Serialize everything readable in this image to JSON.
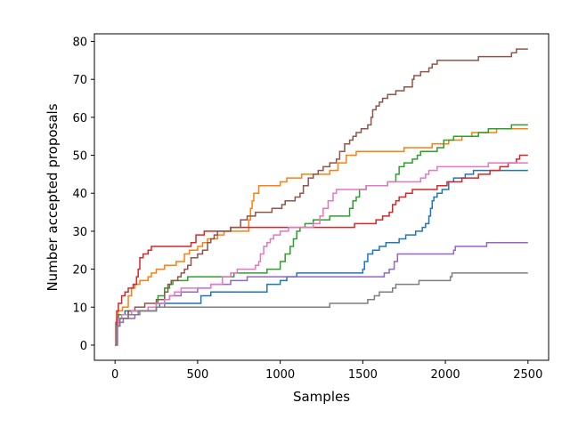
{
  "chart_data": {
    "type": "line",
    "title": "",
    "xlabel": "Samples",
    "ylabel": "Number accepted proposals",
    "xlim": [
      -125,
      2625
    ],
    "ylim": [
      -4,
      82
    ],
    "xticks": [
      0,
      500,
      1000,
      1500,
      2000,
      2500
    ],
    "yticks": [
      0,
      10,
      20,
      30,
      40,
      50,
      60,
      70,
      80
    ],
    "grid": false,
    "legend": "none",
    "series": [
      {
        "color": "#1f77b4",
        "points": [
          [
            0,
            0
          ],
          [
            8,
            6
          ],
          [
            20,
            8
          ],
          [
            60,
            9
          ],
          [
            250,
            10
          ],
          [
            270,
            11
          ],
          [
            500,
            11
          ],
          [
            520,
            13
          ],
          [
            580,
            14
          ],
          [
            900,
            14
          ],
          [
            920,
            16
          ],
          [
            1000,
            17
          ],
          [
            1040,
            18
          ],
          [
            1100,
            19
          ],
          [
            1400,
            19
          ],
          [
            1500,
            20
          ],
          [
            1510,
            22
          ],
          [
            1530,
            24
          ],
          [
            1560,
            25
          ],
          [
            1600,
            26
          ],
          [
            1640,
            27
          ],
          [
            1700,
            27
          ],
          [
            1720,
            28
          ],
          [
            1760,
            29
          ],
          [
            1800,
            29
          ],
          [
            1820,
            30
          ],
          [
            1860,
            31
          ],
          [
            1880,
            32
          ],
          [
            1900,
            34
          ],
          [
            1910,
            36
          ],
          [
            1920,
            38
          ],
          [
            1930,
            39
          ],
          [
            1950,
            40
          ],
          [
            1980,
            41
          ],
          [
            2020,
            43
          ],
          [
            2050,
            44
          ],
          [
            2100,
            44
          ],
          [
            2120,
            45
          ],
          [
            2170,
            46
          ],
          [
            2500,
            46
          ]
        ]
      },
      {
        "color": "#ff7f0e",
        "points": [
          [
            0,
            0
          ],
          [
            10,
            7
          ],
          [
            20,
            9
          ],
          [
            45,
            10
          ],
          [
            80,
            13
          ],
          [
            100,
            15
          ],
          [
            120,
            16
          ],
          [
            150,
            17
          ],
          [
            200,
            18
          ],
          [
            220,
            19
          ],
          [
            250,
            20
          ],
          [
            300,
            21
          ],
          [
            350,
            21
          ],
          [
            370,
            22
          ],
          [
            420,
            24
          ],
          [
            450,
            25
          ],
          [
            500,
            26
          ],
          [
            530,
            27
          ],
          [
            560,
            28
          ],
          [
            600,
            28
          ],
          [
            620,
            29
          ],
          [
            660,
            30
          ],
          [
            800,
            30
          ],
          [
            810,
            33
          ],
          [
            820,
            36
          ],
          [
            830,
            38
          ],
          [
            840,
            40
          ],
          [
            870,
            42
          ],
          [
            960,
            42
          ],
          [
            1000,
            43
          ],
          [
            1040,
            44
          ],
          [
            1100,
            44
          ],
          [
            1130,
            45
          ],
          [
            1250,
            45
          ],
          [
            1300,
            46
          ],
          [
            1350,
            48
          ],
          [
            1400,
            50
          ],
          [
            1460,
            51
          ],
          [
            1700,
            51
          ],
          [
            1750,
            52
          ],
          [
            1900,
            52
          ],
          [
            1920,
            53
          ],
          [
            2020,
            54
          ],
          [
            2100,
            55
          ],
          [
            2160,
            56
          ],
          [
            2310,
            57
          ],
          [
            2500,
            57
          ]
        ]
      },
      {
        "color": "#2ca02c",
        "points": [
          [
            0,
            0
          ],
          [
            10,
            6
          ],
          [
            20,
            8
          ],
          [
            80,
            9
          ],
          [
            200,
            10
          ],
          [
            250,
            11
          ],
          [
            260,
            13
          ],
          [
            300,
            15
          ],
          [
            330,
            16
          ],
          [
            350,
            17
          ],
          [
            420,
            17
          ],
          [
            440,
            18
          ],
          [
            700,
            18
          ],
          [
            720,
            19
          ],
          [
            900,
            19
          ],
          [
            920,
            20
          ],
          [
            1000,
            22
          ],
          [
            1030,
            24
          ],
          [
            1060,
            26
          ],
          [
            1080,
            28
          ],
          [
            1100,
            30
          ],
          [
            1120,
            31
          ],
          [
            1150,
            32
          ],
          [
            1200,
            33
          ],
          [
            1300,
            34
          ],
          [
            1400,
            34
          ],
          [
            1420,
            36
          ],
          [
            1440,
            38
          ],
          [
            1460,
            39
          ],
          [
            1480,
            41
          ],
          [
            1520,
            42
          ],
          [
            1600,
            42
          ],
          [
            1650,
            43
          ],
          [
            1700,
            45
          ],
          [
            1720,
            47
          ],
          [
            1750,
            48
          ],
          [
            1800,
            49
          ],
          [
            1830,
            50
          ],
          [
            1850,
            51
          ],
          [
            1950,
            52
          ],
          [
            1990,
            54
          ],
          [
            2050,
            55
          ],
          [
            2200,
            56
          ],
          [
            2260,
            57
          ],
          [
            2400,
            58
          ],
          [
            2500,
            58
          ]
        ]
      },
      {
        "color": "#d62728",
        "points": [
          [
            0,
            0
          ],
          [
            5,
            6
          ],
          [
            10,
            9
          ],
          [
            20,
            11
          ],
          [
            40,
            13
          ],
          [
            60,
            14
          ],
          [
            80,
            15
          ],
          [
            110,
            16
          ],
          [
            130,
            18
          ],
          [
            140,
            20
          ],
          [
            150,
            23
          ],
          [
            170,
            24
          ],
          [
            200,
            25
          ],
          [
            220,
            26
          ],
          [
            430,
            26
          ],
          [
            460,
            27
          ],
          [
            490,
            29
          ],
          [
            510,
            29
          ],
          [
            540,
            30
          ],
          [
            650,
            30
          ],
          [
            700,
            31
          ],
          [
            1400,
            31
          ],
          [
            1450,
            32
          ],
          [
            1580,
            33
          ],
          [
            1620,
            34
          ],
          [
            1660,
            35
          ],
          [
            1680,
            37
          ],
          [
            1700,
            38
          ],
          [
            1720,
            39
          ],
          [
            1760,
            40
          ],
          [
            1800,
            41
          ],
          [
            1900,
            41
          ],
          [
            1950,
            42
          ],
          [
            2010,
            43
          ],
          [
            2100,
            44
          ],
          [
            2200,
            45
          ],
          [
            2270,
            46
          ],
          [
            2330,
            47
          ],
          [
            2380,
            48
          ],
          [
            2430,
            49
          ],
          [
            2450,
            50
          ],
          [
            2500,
            50
          ]
        ]
      },
      {
        "color": "#9467bd",
        "points": [
          [
            0,
            0
          ],
          [
            15,
            6
          ],
          [
            50,
            7
          ],
          [
            120,
            8
          ],
          [
            150,
            9
          ],
          [
            250,
            10
          ],
          [
            300,
            12
          ],
          [
            330,
            13
          ],
          [
            400,
            14
          ],
          [
            500,
            15
          ],
          [
            580,
            16
          ],
          [
            700,
            17
          ],
          [
            800,
            18
          ],
          [
            1600,
            18
          ],
          [
            1630,
            19
          ],
          [
            1660,
            20
          ],
          [
            1690,
            22
          ],
          [
            1710,
            24
          ],
          [
            2000,
            24
          ],
          [
            2050,
            25
          ],
          [
            2060,
            26
          ],
          [
            2200,
            26
          ],
          [
            2250,
            27
          ],
          [
            2500,
            27
          ]
        ]
      },
      {
        "color": "#8c564b",
        "points": [
          [
            0,
            0
          ],
          [
            10,
            5
          ],
          [
            20,
            7
          ],
          [
            80,
            9
          ],
          [
            120,
            10
          ],
          [
            180,
            11
          ],
          [
            250,
            12
          ],
          [
            300,
            14
          ],
          [
            320,
            16
          ],
          [
            340,
            17
          ],
          [
            380,
            18
          ],
          [
            400,
            19
          ],
          [
            420,
            20
          ],
          [
            440,
            21
          ],
          [
            460,
            23
          ],
          [
            500,
            24
          ],
          [
            530,
            25
          ],
          [
            560,
            27
          ],
          [
            580,
            28
          ],
          [
            600,
            29
          ],
          [
            620,
            30
          ],
          [
            700,
            31
          ],
          [
            760,
            33
          ],
          [
            800,
            34
          ],
          [
            850,
            35
          ],
          [
            950,
            36
          ],
          [
            1010,
            37
          ],
          [
            1030,
            38
          ],
          [
            1090,
            39
          ],
          [
            1120,
            40
          ],
          [
            1140,
            42
          ],
          [
            1170,
            44
          ],
          [
            1200,
            45
          ],
          [
            1230,
            46
          ],
          [
            1260,
            47
          ],
          [
            1300,
            48
          ],
          [
            1340,
            49
          ],
          [
            1360,
            51
          ],
          [
            1390,
            53
          ],
          [
            1420,
            54
          ],
          [
            1440,
            55
          ],
          [
            1460,
            56
          ],
          [
            1490,
            57
          ],
          [
            1530,
            58
          ],
          [
            1550,
            60
          ],
          [
            1560,
            62
          ],
          [
            1580,
            63
          ],
          [
            1600,
            64
          ],
          [
            1620,
            65
          ],
          [
            1650,
            66
          ],
          [
            1700,
            67
          ],
          [
            1750,
            68
          ],
          [
            1800,
            70
          ],
          [
            1810,
            71
          ],
          [
            1850,
            72
          ],
          [
            1900,
            73
          ],
          [
            1920,
            74
          ],
          [
            1950,
            75
          ],
          [
            2200,
            76
          ],
          [
            2400,
            77
          ],
          [
            2430,
            78
          ],
          [
            2500,
            78
          ]
        ]
      },
      {
        "color": "#e377c2",
        "points": [
          [
            0,
            0
          ],
          [
            10,
            5
          ],
          [
            20,
            7
          ],
          [
            40,
            8
          ],
          [
            100,
            9
          ],
          [
            200,
            10
          ],
          [
            250,
            11
          ],
          [
            300,
            12
          ],
          [
            330,
            13
          ],
          [
            360,
            14
          ],
          [
            400,
            15
          ],
          [
            580,
            16
          ],
          [
            650,
            18
          ],
          [
            700,
            19
          ],
          [
            740,
            20
          ],
          [
            850,
            21
          ],
          [
            870,
            22
          ],
          [
            880,
            24
          ],
          [
            900,
            26
          ],
          [
            920,
            27
          ],
          [
            940,
            28
          ],
          [
            960,
            29
          ],
          [
            1000,
            30
          ],
          [
            1050,
            31
          ],
          [
            1150,
            31
          ],
          [
            1200,
            32
          ],
          [
            1240,
            34
          ],
          [
            1260,
            36
          ],
          [
            1290,
            38
          ],
          [
            1320,
            40
          ],
          [
            1340,
            41
          ],
          [
            1500,
            41
          ],
          [
            1520,
            42
          ],
          [
            1600,
            42
          ],
          [
            1650,
            43
          ],
          [
            1800,
            43
          ],
          [
            1850,
            44
          ],
          [
            1880,
            45
          ],
          [
            1900,
            46
          ],
          [
            1950,
            47
          ],
          [
            2200,
            47
          ],
          [
            2260,
            48
          ],
          [
            2500,
            48
          ]
        ]
      },
      {
        "color": "#7f7f7f",
        "points": [
          [
            0,
            0
          ],
          [
            10,
            5
          ],
          [
            30,
            7
          ],
          [
            80,
            8
          ],
          [
            140,
            9
          ],
          [
            250,
            10
          ],
          [
            1280,
            10
          ],
          [
            1300,
            11
          ],
          [
            1500,
            11
          ],
          [
            1530,
            12
          ],
          [
            1570,
            13
          ],
          [
            1600,
            14
          ],
          [
            1680,
            15
          ],
          [
            1700,
            16
          ],
          [
            1800,
            16
          ],
          [
            1840,
            17
          ],
          [
            2030,
            18
          ],
          [
            2040,
            19
          ],
          [
            2500,
            19
          ]
        ]
      }
    ]
  }
}
